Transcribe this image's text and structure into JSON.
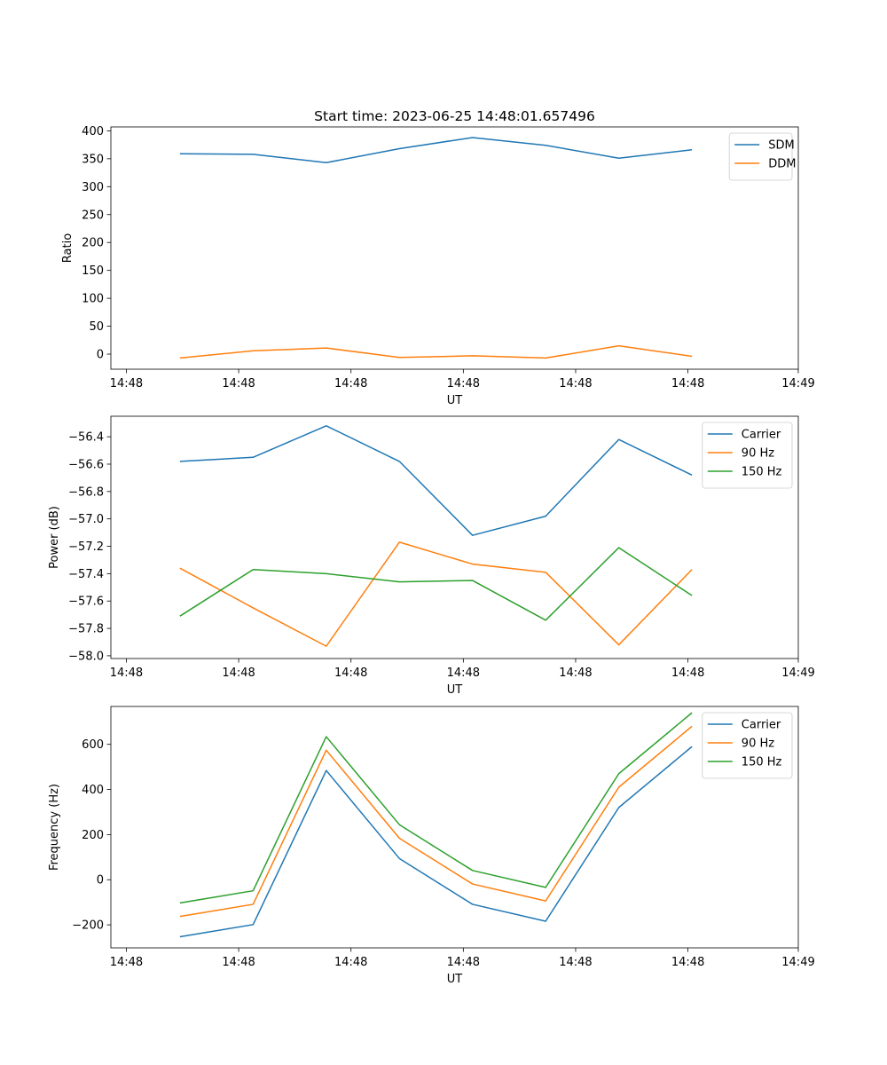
{
  "figure": {
    "title": "Start time: 2023-06-25 14:48:01.657496"
  },
  "chart_data": [
    {
      "type": "line",
      "title": "Start time: 2023-06-25 14:48:01.657496",
      "xlabel": "UT",
      "ylabel": "Ratio",
      "x_tick_labels": [
        "14:48",
        "14:48",
        "14:48",
        "14:48",
        "14:48",
        "14:48",
        "14:49"
      ],
      "y_ticks": [
        0,
        50,
        100,
        150,
        200,
        250,
        300,
        350,
        400
      ],
      "ylim": [
        -27,
        407
      ],
      "legend_position": "upper right",
      "grid": false,
      "series": [
        {
          "name": "SDM",
          "color": "#1f77b4",
          "values": [
            359,
            358,
            343,
            368,
            388,
            374,
            351,
            366
          ]
        },
        {
          "name": "DDM",
          "color": "#ff7f0e",
          "values": [
            -7,
            6,
            11,
            -6,
            -3,
            -7,
            15,
            -4
          ]
        }
      ]
    },
    {
      "type": "line",
      "title": "",
      "xlabel": "UT",
      "ylabel": "Power (dB)",
      "x_tick_labels": [
        "14:48",
        "14:48",
        "14:48",
        "14:48",
        "14:48",
        "14:48",
        "14:49"
      ],
      "y_ticks": [
        -58.0,
        -57.8,
        -57.6,
        -57.4,
        -57.2,
        -57.0,
        -56.8,
        -56.6,
        -56.4
      ],
      "y_tick_labels": [
        "−58.0",
        "−57.8",
        "−57.6",
        "−57.4",
        "−57.2",
        "−57.0",
        "−56.8",
        "−56.6",
        "−56.4"
      ],
      "ylim": [
        -58.02,
        -56.25
      ],
      "legend_position": "upper right",
      "grid": false,
      "series": [
        {
          "name": "Carrier",
          "color": "#1f77b4",
          "values": [
            -56.58,
            -56.55,
            -56.32,
            -56.58,
            -57.12,
            -56.98,
            -56.42,
            -56.68
          ]
        },
        {
          "name": "90 Hz",
          "color": "#ff7f0e",
          "values": [
            -57.36,
            -57.65,
            -57.93,
            -57.17,
            -57.33,
            -57.39,
            -57.92,
            -57.37
          ]
        },
        {
          "name": "150 Hz",
          "color": "#2ca02c",
          "values": [
            -57.71,
            -57.37,
            -57.4,
            -57.46,
            -57.45,
            -57.74,
            -57.21,
            -57.56
          ]
        }
      ]
    },
    {
      "type": "line",
      "title": "",
      "xlabel": "UT",
      "ylabel": "Frequency (Hz)",
      "x_tick_labels": [
        "14:48",
        "14:48",
        "14:48",
        "14:48",
        "14:48",
        "14:48",
        "14:49"
      ],
      "y_ticks": [
        -200,
        0,
        200,
        400,
        600
      ],
      "y_tick_labels": [
        "−200",
        "0",
        "200",
        "400",
        "600"
      ],
      "ylim": [
        -302,
        768
      ],
      "legend_position": "upper right",
      "grid": false,
      "series": [
        {
          "name": "Carrier",
          "color": "#1f77b4",
          "values": [
            -253,
            -199,
            484,
            94,
            -109,
            -184,
            320,
            590
          ]
        },
        {
          "name": "90 Hz",
          "color": "#ff7f0e",
          "values": [
            -163,
            -109,
            574,
            184,
            -19,
            -94,
            410,
            680
          ]
        },
        {
          "name": "150 Hz",
          "color": "#2ca02c",
          "values": [
            -103,
            -49,
            634,
            244,
            41,
            -34,
            470,
            740
          ]
        }
      ]
    }
  ]
}
